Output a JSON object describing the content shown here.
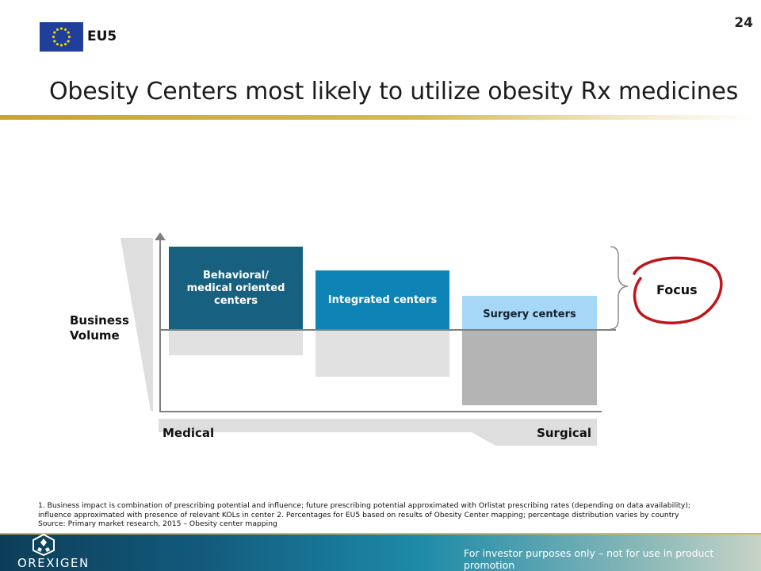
{
  "header": {
    "region_label": "EU5",
    "page_number": "24",
    "title": "Obesity Centers most likely to utilize obesity Rx medicines"
  },
  "diagram": {
    "y_axis_label_line1": "Business",
    "y_axis_label_line2": "Volume",
    "x_left_label": "Medical",
    "x_right_label": "Surgical",
    "focus_label": "Focus",
    "bars": [
      {
        "label_lines": [
          "Behavioral/",
          "medical oriented",
          "centers"
        ],
        "color": "#17607f"
      },
      {
        "label_lines": [
          "Integrated centers"
        ],
        "color": "#0e83b5"
      },
      {
        "label_lines": [
          "Surgery centers"
        ],
        "color": "#a7d7f7"
      }
    ],
    "focus_circle_color": "#c0161b"
  },
  "footnote": {
    "line1": "1. Business impact is combination of prescribing potential and influence; future prescribing potential approximated with Orlistat prescribing rates (depending on data availability);",
    "line2": "influence approximated with presence of relevant KOLs in center  2. Percentages for EU5 based on results of Obesity Center mapping; percentage distribution varies by country",
    "line3": "Source: Primary market research, 2015 – Obesity center mapping"
  },
  "footer": {
    "logo_text": "OREXIGEN",
    "disclaimer": "For investor purposes only – not for use in product promotion"
  }
}
